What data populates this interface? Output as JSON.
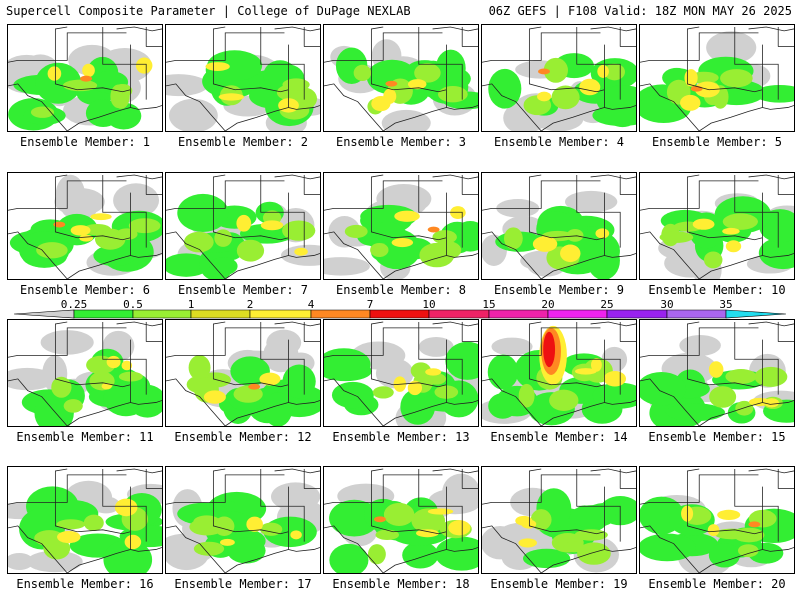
{
  "header": {
    "title": "Supercell Composite Parameter | College of DuPage NEXLAB",
    "run_info": "06Z GEFS | F108 Valid: 18Z MON MAY 26 2025"
  },
  "colorbar": {
    "labels": [
      "0.25",
      "0.5",
      "1",
      "2",
      "4",
      "7",
      "10",
      "15",
      "20",
      "25",
      "30",
      "35"
    ],
    "colors": [
      "#d0d0d0",
      "#33ee33",
      "#99ee33",
      "#dddd22",
      "#ffee33",
      "#ff8822",
      "#ee1111",
      "#ee2266",
      "#ee22aa",
      "#ee22ee",
      "#9922ee",
      "#aa66ee",
      "#22ddee"
    ]
  },
  "panels": [
    {
      "caption": "Ensemble Member: 1",
      "max_level": "orange"
    },
    {
      "caption": "Ensemble Member: 2",
      "max_level": "yellow"
    },
    {
      "caption": "Ensemble Member: 3",
      "max_level": "orange"
    },
    {
      "caption": "Ensemble Member: 4",
      "max_level": "orange"
    },
    {
      "caption": "Ensemble Member: 5",
      "max_level": "orange"
    },
    {
      "caption": "Ensemble Member: 6",
      "max_level": "orange"
    },
    {
      "caption": "Ensemble Member: 7",
      "max_level": "yellow"
    },
    {
      "caption": "Ensemble Member: 8",
      "max_level": "orange"
    },
    {
      "caption": "Ensemble Member: 9",
      "max_level": "yellow"
    },
    {
      "caption": "Ensemble Member: 10",
      "max_level": "yellow"
    },
    {
      "caption": "Ensemble Member: 11",
      "max_level": "yellow"
    },
    {
      "caption": "Ensemble Member: 12",
      "max_level": "orange"
    },
    {
      "caption": "Ensemble Member: 13",
      "max_level": "yellow"
    },
    {
      "caption": "Ensemble Member: 14",
      "max_level": "red"
    },
    {
      "caption": "Ensemble Member: 15",
      "max_level": "yellow"
    },
    {
      "caption": "Ensemble Member: 16",
      "max_level": "yellow"
    },
    {
      "caption": "Ensemble Member: 17",
      "max_level": "yellow"
    },
    {
      "caption": "Ensemble Member: 18",
      "max_level": "orange"
    },
    {
      "caption": "Ensemble Member: 19",
      "max_level": "yellow"
    },
    {
      "caption": "Ensemble Member: 20",
      "max_level": "orange"
    }
  ]
}
